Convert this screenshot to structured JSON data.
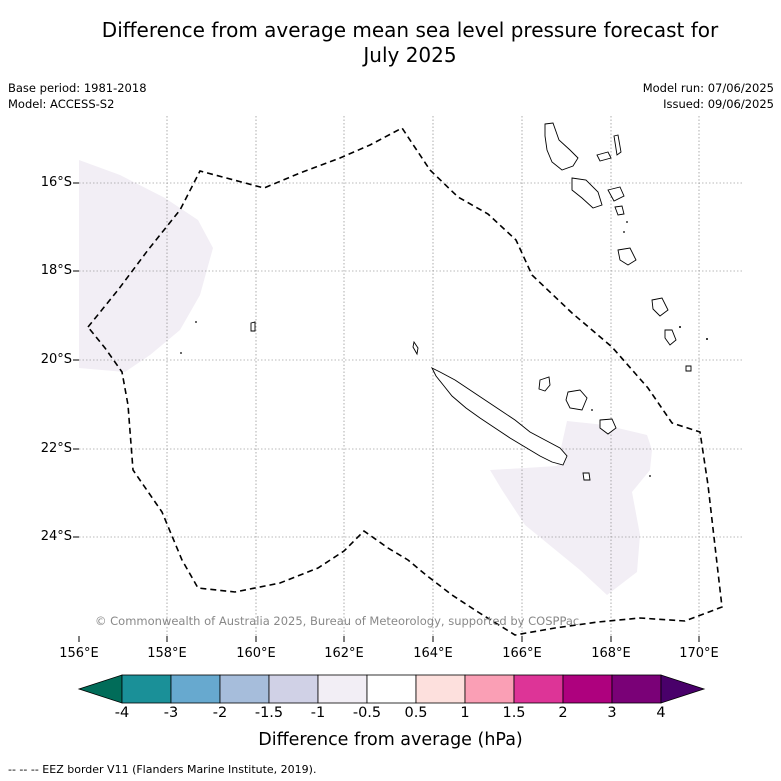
{
  "title_line1": "Difference from average mean sea level pressure forecast for",
  "title_line2": "July 2025",
  "base_period": "Base period: 1981-2018",
  "model": "Model: ACCESS-S2",
  "model_run": "Model run: 07/06/2025",
  "issued": "Issued: 09/06/2025",
  "copyright": "© Commonwealth of Australia 2025, Bureau of Meteorology, supported by COSPPac",
  "footnote": "--  --  -- EEZ border V11 (Flanders Marine Institute, 2019).",
  "map": {
    "lon_range": [
      156,
      171
    ],
    "lat_range": [
      -26.2,
      -14.7
    ],
    "lat_ticks": [
      "16°S",
      "18°S",
      "20°S",
      "22°S",
      "24°S"
    ],
    "lon_ticks": [
      "156°E",
      "158°E",
      "160°E",
      "162°E",
      "164°E",
      "166°E",
      "168°E",
      "170°E"
    ],
    "anomaly_fill": "#f2eef5",
    "anomaly_category": "-1 to -0.5 hPa",
    "grid": "dotted"
  },
  "colorbar": {
    "title": "Difference from average (hPa)",
    "labels": [
      "-4",
      "-3",
      "-2",
      "-1.5",
      "-1",
      "-0.5",
      "0.5",
      "1",
      "1.5",
      "2",
      "3",
      "4"
    ],
    "colors": [
      "#1a9098",
      "#67a9cf",
      "#a6bddb",
      "#d0d1e6",
      "#f2eef5",
      "#ffffff",
      "#fde0dd",
      "#fa9fb5",
      "#dd3497",
      "#ae017e",
      "#7a0177"
    ],
    "under_color": "#016c59",
    "over_color": "#49006a"
  }
}
